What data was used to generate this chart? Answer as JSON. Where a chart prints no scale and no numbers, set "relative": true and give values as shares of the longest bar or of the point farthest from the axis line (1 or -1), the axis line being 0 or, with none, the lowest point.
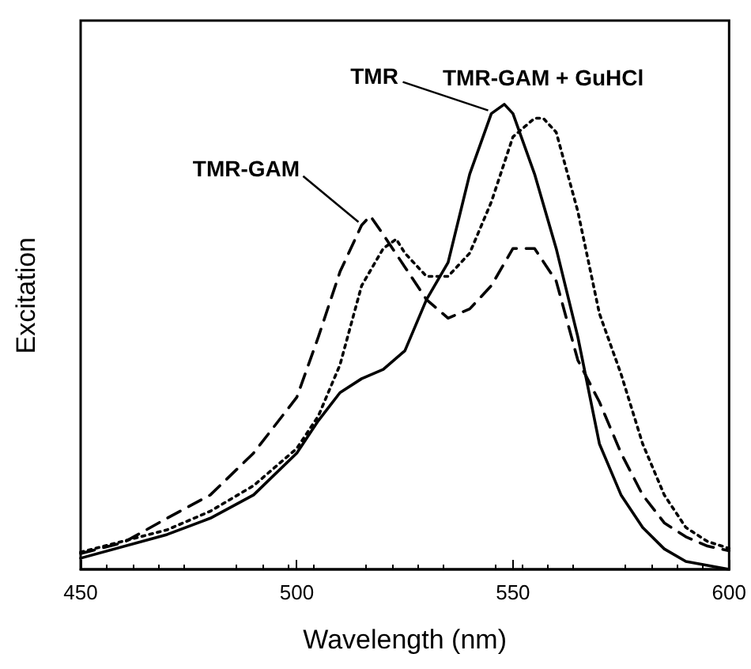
{
  "chart_data": {
    "type": "line",
    "xlabel": "Wavelength (nm)",
    "ylabel": "Excitation",
    "relative": true,
    "xlim": [
      450,
      600
    ],
    "xticks": [
      450,
      500,
      550,
      600
    ],
    "tick_labels": "x",
    "legend": false,
    "grid": false,
    "marker": "none",
    "series": [
      {
        "name": "TMR",
        "color": "#000000",
        "line_style": "solid",
        "x": [
          450,
          470,
          480,
          490,
          500,
          505,
          510,
          515,
          520,
          525,
          530,
          535,
          540,
          545,
          548,
          550,
          555,
          560,
          565,
          570,
          575,
          580,
          585,
          590,
          600
        ],
        "values": [
          0.024,
          0.075,
          0.11,
          0.16,
          0.25,
          0.32,
          0.38,
          0.41,
          0.43,
          0.47,
          0.58,
          0.66,
          0.85,
          0.98,
          1,
          0.98,
          0.85,
          0.69,
          0.5,
          0.27,
          0.16,
          0.09,
          0.044,
          0.017,
          0
        ]
      },
      {
        "name": "TMR-GAM + GuHCl",
        "color": "#000000",
        "line_style": "dotted",
        "x": [
          450,
          470,
          480,
          490,
          500,
          505,
          510,
          515,
          520,
          523,
          525,
          530,
          535,
          540,
          545,
          550,
          555,
          557,
          560,
          565,
          570,
          575,
          580,
          585,
          590,
          595,
          600
        ],
        "values": [
          0.037,
          0.085,
          0.125,
          0.18,
          0.26,
          0.33,
          0.44,
          0.61,
          0.69,
          0.71,
          0.68,
          0.63,
          0.63,
          0.68,
          0.79,
          0.93,
          0.97,
          0.97,
          0.94,
          0.77,
          0.55,
          0.42,
          0.27,
          0.16,
          0.09,
          0.06,
          0.045
        ]
      },
      {
        "name": "TMR-GAM",
        "color": "#000000",
        "line_style": "dashed",
        "x": [
          450,
          460,
          470,
          480,
          490,
          500,
          505,
          510,
          515,
          517,
          520,
          525,
          530,
          535,
          540,
          545,
          550,
          555,
          560,
          565,
          570,
          575,
          580,
          585,
          590,
          595,
          600
        ],
        "values": [
          0.034,
          0.058,
          0.11,
          0.16,
          0.25,
          0.37,
          0.5,
          0.64,
          0.74,
          0.76,
          0.72,
          0.65,
          0.58,
          0.54,
          0.56,
          0.61,
          0.69,
          0.69,
          0.62,
          0.45,
          0.36,
          0.25,
          0.16,
          0.1,
          0.07,
          0.05,
          0.04
        ]
      }
    ]
  }
}
